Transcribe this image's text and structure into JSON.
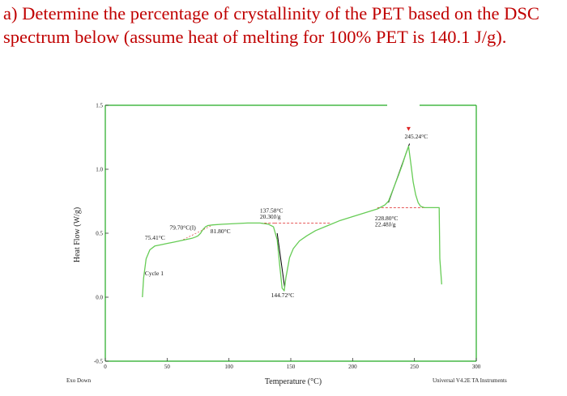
{
  "question": {
    "line1": "a) Determine the percentage of crystallinity of the PET based on the DSC",
    "line2": "spectrum below (assume heat of melting for 100% PET is 140.1 J/g)."
  },
  "colors": {
    "question_text": "#c00000",
    "curve": "#66cc55",
    "frame": "#22aa22",
    "baseline_dash": "#dd2222",
    "tangent": "#000000"
  },
  "chart_data": {
    "type": "line",
    "xlabel": "Temperature (°C)",
    "ylabel": "Heat Flow (W/g)",
    "xlim": [
      0,
      300
    ],
    "ylim": [
      -0.5,
      1.5
    ],
    "x_ticks": [
      {
        "value": 0,
        "label": "0"
      },
      {
        "value": 50,
        "label": "50"
      },
      {
        "value": 100,
        "label": "100"
      },
      {
        "value": 150,
        "label": "150"
      },
      {
        "value": 200,
        "label": "200"
      },
      {
        "value": 250,
        "label": "250"
      },
      {
        "value": 300,
        "label": "300"
      }
    ],
    "y_ticks": [
      {
        "value": -0.5,
        "label": "-0.5"
      },
      {
        "value": 0.0,
        "label": "0.0"
      },
      {
        "value": 0.5,
        "label": "0.5"
      },
      {
        "value": 1.0,
        "label": "1.0"
      },
      {
        "value": 1.5,
        "label": "1.5"
      }
    ],
    "bottom_left_label": "Exo Down",
    "bottom_right_label": "Universal V4.2E TA Instruments",
    "series": [
      {
        "x": [
          30,
          31,
          33,
          36,
          40,
          45,
          50,
          55,
          60,
          65,
          70,
          73,
          75,
          77,
          79,
          81,
          83,
          87,
          95,
          105,
          115,
          125,
          132,
          136,
          139,
          141,
          143,
          144.72,
          146,
          149,
          152,
          157,
          163,
          170,
          180,
          190,
          200,
          210,
          220,
          226,
          229,
          233,
          237,
          240,
          243,
          245.24,
          247,
          249,
          251,
          253,
          255,
          258,
          262,
          267,
          270,
          270.5,
          272
        ],
        "y": [
          0.0,
          0.15,
          0.3,
          0.37,
          0.4,
          0.41,
          0.42,
          0.43,
          0.44,
          0.45,
          0.46,
          0.47,
          0.48,
          0.5,
          0.53,
          0.55,
          0.56,
          0.565,
          0.57,
          0.575,
          0.58,
          0.58,
          0.57,
          0.55,
          0.45,
          0.25,
          0.07,
          0.05,
          0.15,
          0.31,
          0.38,
          0.44,
          0.48,
          0.52,
          0.56,
          0.6,
          0.63,
          0.66,
          0.69,
          0.72,
          0.75,
          0.85,
          0.95,
          1.03,
          1.12,
          1.18,
          1.05,
          0.9,
          0.8,
          0.74,
          0.71,
          0.7,
          0.7,
          0.7,
          0.7,
          0.3,
          0.1
        ]
      }
    ],
    "annotations": [
      {
        "text": "245.24°C",
        "x": 242,
        "y": 1.24
      },
      {
        "text": "137.58°C",
        "x": 125,
        "y": 0.66
      },
      {
        "text": "20.30J/g",
        "x": 125,
        "y": 0.615
      },
      {
        "text": "228.80°C",
        "x": 218,
        "y": 0.6
      },
      {
        "text": "22.48J/g",
        "x": 218,
        "y": 0.555
      },
      {
        "text": "79.70°C(I)",
        "x": 52,
        "y": 0.53
      },
      {
        "text": "81.80°C",
        "x": 85,
        "y": 0.5
      },
      {
        "text": "75.41°C",
        "x": 32,
        "y": 0.45
      },
      {
        "text": "144.72°C",
        "x": 134,
        "y": 0.0
      },
      {
        "text": "Cycle 1",
        "x": 32,
        "y": 0.17
      }
    ]
  }
}
